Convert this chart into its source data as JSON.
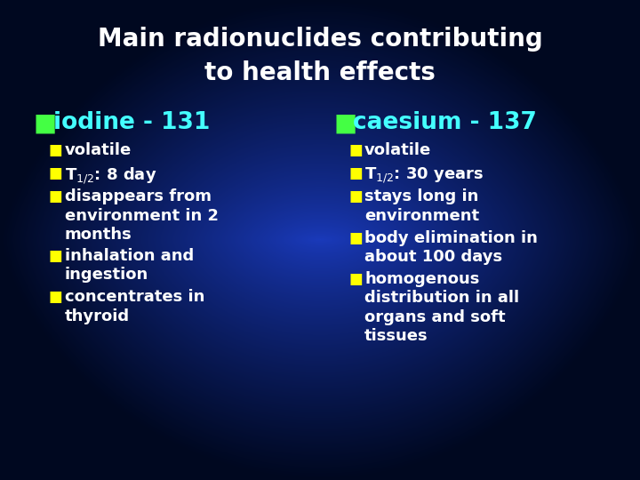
{
  "title_line1": "Main radionuclides contributing",
  "title_line2": "to health effects",
  "title_color": "#ffffff",
  "title_fontsize": 20,
  "bg_color_center": "#1a3399",
  "bg_color_edge": "#000820",
  "bullet_color_green": "#44ff44",
  "bullet_color_yellow": "#ffff00",
  "text_color_cyan": "#44ffff",
  "text_color_white": "#ffffff",
  "left_header": "iodine - 131",
  "right_header": "caesium - 137",
  "left_bullets_text": [
    "volatile",
    "T",
    ": 8 day",
    "disappears from\nenvironment in 2\nmonths",
    "inhalation and\ningestion",
    "concentrates in\nthyroid"
  ],
  "right_bullets_text": [
    "volatile",
    "T",
    ": 30 years",
    "stays long in\nenvironment",
    "body elimination in\nabout 100 days",
    "homogenous\ndistribution in all\norgans and soft\ntissues"
  ],
  "header_fontsize": 19,
  "sub_bullet_fontsize": 13
}
